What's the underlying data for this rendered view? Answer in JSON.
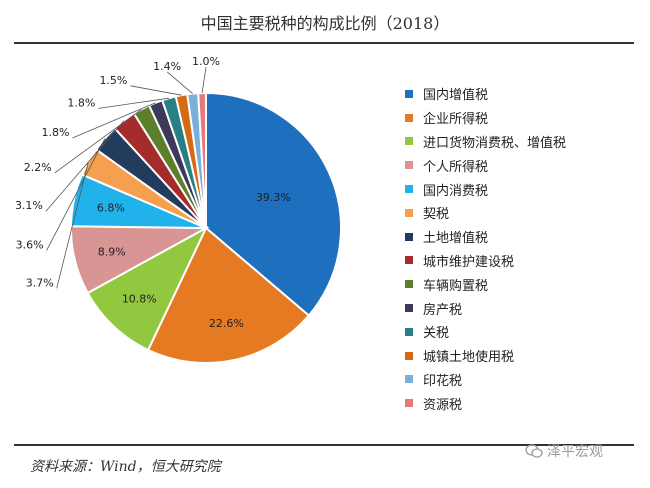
{
  "chart_data": {
    "type": "pie",
    "title": "中国主要税种的构成比例（2018）",
    "slices": [
      {
        "label": "国内增值税",
        "value": 39.3,
        "display": "39.3%",
        "color": "#1f6fbf"
      },
      {
        "label": "企业所得税",
        "value": 22.6,
        "display": "22.6%",
        "color": "#e67a22"
      },
      {
        "label": "进口货物消费税、增值税",
        "value": 10.8,
        "display": "10.8%",
        "color": "#92c83f"
      },
      {
        "label": "个人所得税",
        "value": 8.9,
        "display": "8.9%",
        "color": "#d99494"
      },
      {
        "label": "国内消费税",
        "value": 6.8,
        "display": "6.8%",
        "color": "#21b2ec"
      },
      {
        "label": "契税",
        "value": 3.7,
        "display": "3.7%",
        "color": "#f5a04e"
      },
      {
        "label": "土地增值税",
        "value": 3.6,
        "display": "3.6%",
        "color": "#233b5c"
      },
      {
        "label": "城市维护建设税",
        "value": 3.1,
        "display": "3.1%",
        "color": "#a62b2b"
      },
      {
        "label": "车辆购置税",
        "value": 2.2,
        "display": "2.2%",
        "color": "#5b7f2a"
      },
      {
        "label": "房产税",
        "value": 1.8,
        "display": "1.8%",
        "color": "#3c3a58"
      },
      {
        "label": "关税",
        "value": 1.8,
        "display": "1.8%",
        "color": "#2a7f86"
      },
      {
        "label": "城镇土地使用税",
        "value": 1.5,
        "display": "1.5%",
        "color": "#d46b14"
      },
      {
        "label": "印花税",
        "value": 1.4,
        "display": "1.4%",
        "color": "#7aaedb"
      },
      {
        "label": "资源税",
        "value": 1.0,
        "display": "1.0%",
        "color": "#e07c7c"
      }
    ],
    "legend_position": "right",
    "start_angle": "12 o'clock",
    "direction": "clockwise"
  },
  "source": "资料来源：Wind，恒大研究院",
  "watermark": {
    "text": "泽平宏观",
    "icon": "wechat-icon"
  }
}
